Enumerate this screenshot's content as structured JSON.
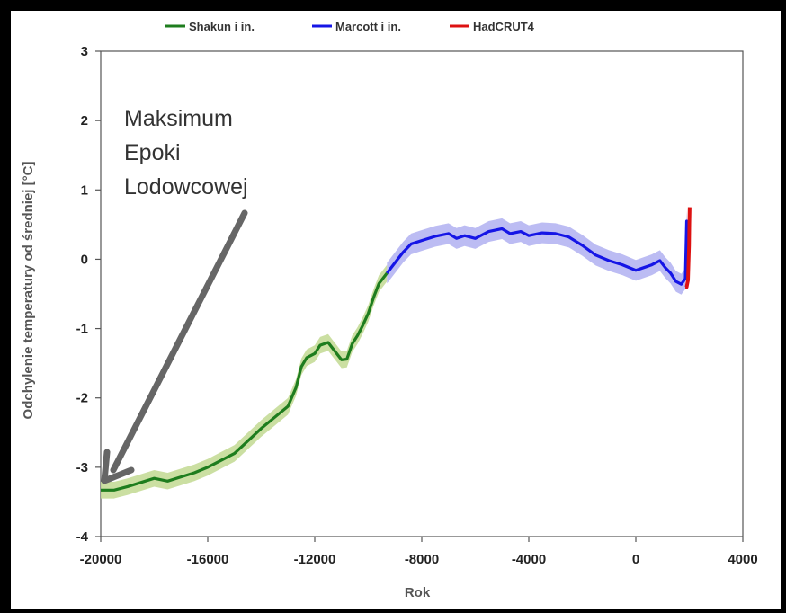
{
  "chart_data": {
    "type": "line",
    "xlabel": "Rok",
    "ylabel": "Odchylenie temperatury od średniej [°C]",
    "xlim": [
      -20000,
      4000
    ],
    "ylim": [
      -4,
      3
    ],
    "x_ticks": [
      -20000,
      -16000,
      -12000,
      -8000,
      -4000,
      0,
      4000
    ],
    "y_ticks": [
      3,
      2,
      1,
      0,
      -1,
      -2,
      -3,
      -4
    ],
    "grid": false,
    "legend_position": "top",
    "annotation": {
      "lines": [
        "Maksimum",
        "Epoki",
        "Lodowcowej"
      ],
      "arrow_target": {
        "x": -20000,
        "y": -3.3
      }
    },
    "series": [
      {
        "name": "Shakun i in.",
        "color": "#1e7d1e",
        "band_color": "#c5dc98",
        "uncertainty": 0.12,
        "x": [
          -20000,
          -19500,
          -19000,
          -18500,
          -18000,
          -17500,
          -17000,
          -16500,
          -16000,
          -15500,
          -15000,
          -14500,
          -14000,
          -13500,
          -13000,
          -12700,
          -12500,
          -12300,
          -12000,
          -11800,
          -11500,
          -11300,
          -11000,
          -10800,
          -10600,
          -10400,
          -10200,
          -10000,
          -9800,
          -9600,
          -9400,
          -9300
        ],
        "y": [
          -3.33,
          -3.33,
          -3.28,
          -3.22,
          -3.16,
          -3.2,
          -3.14,
          -3.08,
          -3.0,
          -2.9,
          -2.8,
          -2.62,
          -2.44,
          -2.28,
          -2.12,
          -1.85,
          -1.55,
          -1.42,
          -1.36,
          -1.24,
          -1.2,
          -1.3,
          -1.45,
          -1.44,
          -1.22,
          -1.1,
          -0.95,
          -0.78,
          -0.55,
          -0.35,
          -0.25,
          -0.2
        ]
      },
      {
        "name": "Marcott i in.",
        "color": "#1515e6",
        "band_color": "#b5b5f2",
        "uncertainty": 0.15,
        "x": [
          -9300,
          -9000,
          -8700,
          -8400,
          -8000,
          -7500,
          -7000,
          -6700,
          -6400,
          -6000,
          -5500,
          -5000,
          -4700,
          -4300,
          -4000,
          -3500,
          -3000,
          -2500,
          -2000,
          -1500,
          -1000,
          -500,
          0,
          300,
          600,
          900,
          1100,
          1300,
          1500,
          1700,
          1850,
          1900,
          1950
        ],
        "y": [
          -0.2,
          -0.05,
          0.1,
          0.22,
          0.27,
          0.33,
          0.37,
          0.3,
          0.34,
          0.3,
          0.4,
          0.44,
          0.37,
          0.4,
          0.34,
          0.38,
          0.37,
          0.32,
          0.2,
          0.06,
          -0.02,
          -0.08,
          -0.16,
          -0.12,
          -0.08,
          -0.02,
          -0.12,
          -0.2,
          -0.32,
          -0.36,
          -0.28,
          0.55,
          0.1
        ]
      },
      {
        "name": "HadCRUT4",
        "color": "#dd1111",
        "x": [
          1850,
          1900,
          1950,
          1990,
          2000,
          2013
        ],
        "y": [
          -0.4,
          -0.4,
          -0.3,
          0.2,
          0.5,
          0.75
        ]
      }
    ]
  }
}
